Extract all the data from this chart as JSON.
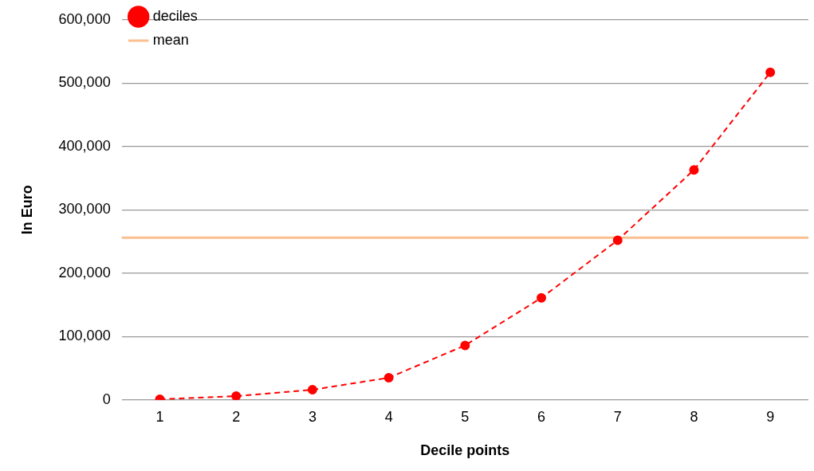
{
  "chart_data": {
    "type": "line",
    "xlabel": "Decile points",
    "ylabel": "In Euro",
    "categories": [
      "1",
      "2",
      "3",
      "4",
      "5",
      "6",
      "7",
      "8",
      "9"
    ],
    "series": [
      {
        "name": "deciles",
        "color": "#ff0000",
        "values": [
          1000,
          6000,
          16000,
          35000,
          86000,
          161000,
          252000,
          363000,
          517000
        ]
      }
    ],
    "ylim": [
      0,
      600000
    ],
    "yticks": [
      {
        "value": 0,
        "label": "0"
      },
      {
        "value": 100000,
        "label": "100,000"
      },
      {
        "value": 200000,
        "label": "200,000"
      },
      {
        "value": 300000,
        "label": "300,000"
      },
      {
        "value": 400000,
        "label": "400,000"
      },
      {
        "value": 500000,
        "label": "500,000"
      },
      {
        "value": 600000,
        "label": "600,000"
      }
    ],
    "ref_lines": [
      {
        "axis": "y",
        "value": 256000,
        "label": "mean",
        "color": "#fac090"
      }
    ],
    "grid": "y",
    "legend": "top left",
    "marker": "circle",
    "line_style": "dashed"
  }
}
